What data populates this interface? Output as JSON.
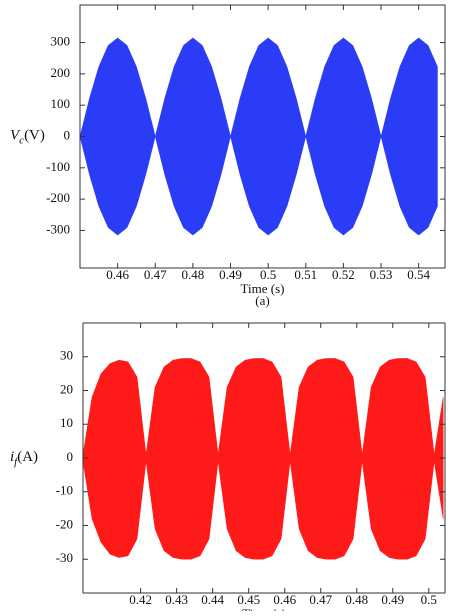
{
  "chart_data": [
    {
      "type": "area",
      "ylabel": {
        "symbol": "V",
        "subscript": "c",
        "unit": "(V)"
      },
      "xlabel": "Time (s)",
      "caption": "(a)",
      "xlim": [
        0.45,
        0.547
      ],
      "ylim": [
        -420,
        420
      ],
      "xticks": [
        0.46,
        0.47,
        0.48,
        0.49,
        0.5,
        0.51,
        0.52,
        0.53,
        0.54
      ],
      "yticks": [
        -300,
        -200,
        -100,
        0,
        100,
        200,
        300
      ],
      "x": [
        0.45,
        0.4525,
        0.455,
        0.4575,
        0.46,
        0.4625,
        0.465,
        0.4675,
        0.47,
        0.4725,
        0.475,
        0.4775,
        0.48,
        0.4825,
        0.485,
        0.4875,
        0.49,
        0.4925,
        0.495,
        0.4975,
        0.5,
        0.5025,
        0.505,
        0.5075,
        0.51,
        0.5125,
        0.515,
        0.5175,
        0.52,
        0.5225,
        0.525,
        0.5275,
        0.53,
        0.5325,
        0.535,
        0.5375,
        0.54,
        0.5425,
        0.545
      ],
      "series": [
        {
          "color": "#2a3cf5",
          "values": [
            0,
            121,
            223,
            291,
            315,
            291,
            223,
            121,
            0,
            121,
            223,
            291,
            315,
            291,
            223,
            121,
            0,
            121,
            223,
            291,
            315,
            291,
            223,
            121,
            0,
            121,
            223,
            291,
            315,
            291,
            223,
            121,
            0,
            121,
            223,
            291,
            315,
            291,
            223
          ]
        },
        {
          "color": "#2a3cf5",
          "values": [
            0,
            -121,
            -223,
            -291,
            -315,
            -291,
            -223,
            -121,
            0,
            -121,
            -223,
            -291,
            -315,
            -291,
            -223,
            -121,
            0,
            -121,
            -223,
            -291,
            -315,
            -291,
            -223,
            -121,
            0,
            -121,
            -223,
            -291,
            -315,
            -291,
            -223,
            -121,
            0,
            -121,
            -223,
            -291,
            -315,
            -291,
            -223
          ]
        }
      ]
    },
    {
      "type": "area",
      "ylabel": {
        "symbol": "i",
        "subscript": "f",
        "unit": "(A)"
      },
      "xlabel": "Time (s)",
      "xlim": [
        0.404,
        0.5045
      ],
      "ylim": [
        -40,
        40
      ],
      "xticks": [
        0.42,
        0.43,
        0.44,
        0.45,
        0.46,
        0.47,
        0.48,
        0.49,
        0.5
      ],
      "yticks": [
        -30,
        -20,
        -10,
        0,
        10,
        20,
        30
      ],
      "x": [
        0.404,
        0.4065,
        0.409,
        0.4115,
        0.414,
        0.4165,
        0.419,
        0.4215,
        0.424,
        0.4265,
        0.429,
        0.4315,
        0.434,
        0.4365,
        0.439,
        0.4415,
        0.444,
        0.4465,
        0.449,
        0.4515,
        0.454,
        0.4565,
        0.459,
        0.4615,
        0.464,
        0.4665,
        0.469,
        0.4715,
        0.474,
        0.4765,
        0.479,
        0.4815,
        0.484,
        0.4865,
        0.489,
        0.4915,
        0.494,
        0.4965,
        0.499,
        0.5015,
        0.504
      ],
      "series": [
        {
          "color": "#ff1a1a",
          "values": [
            1,
            18,
            25,
            28,
            29,
            28.5,
            24,
            1,
            21,
            27,
            29,
            29.5,
            29.5,
            28.5,
            24,
            1,
            21,
            27,
            29,
            29.5,
            29.5,
            28.5,
            24,
            1,
            21,
            27,
            29,
            29.5,
            29.5,
            28.5,
            24,
            1,
            21,
            27,
            29,
            29.5,
            29.5,
            28.5,
            24,
            1,
            18
          ]
        },
        {
          "color": "#ff1a1a",
          "values": [
            -1,
            -18,
            -25,
            -28.5,
            -29.5,
            -29,
            -24,
            -1,
            -21,
            -27.5,
            -29.5,
            -30,
            -30,
            -29,
            -24,
            -1,
            -21,
            -27.5,
            -29.5,
            -30,
            -30,
            -29,
            -24,
            -1,
            -21,
            -27.5,
            -29.5,
            -30,
            -30,
            -29,
            -24,
            -1,
            -21,
            -27.5,
            -29.5,
            -30,
            -30,
            -29,
            -24,
            -1,
            -18
          ]
        }
      ]
    }
  ]
}
